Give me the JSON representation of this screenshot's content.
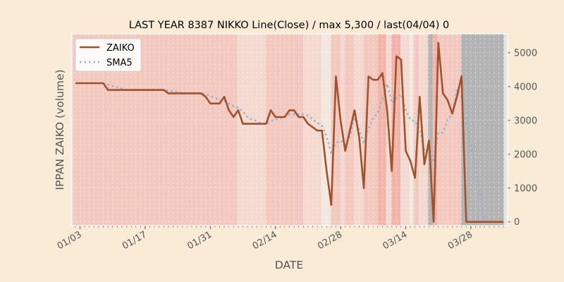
{
  "chart_data": {
    "type": "line",
    "title": "LAST YEAR 8387 NIKKO Line(Close) / max 5,300 / last(04/04) 0",
    "xlabel": "DATE",
    "ylabel": "IPPAN ZAIKO (volume)",
    "ylim": [
      -110,
      5560
    ],
    "xlim_days": [
      -0.9,
      92.9
    ],
    "start_date": "01/02",
    "y_ticks": [
      0,
      1000,
      2000,
      3000,
      4000,
      5000
    ],
    "y_tick_labels": [
      "0",
      "1000",
      "2000",
      "3000",
      "4000",
      "5000"
    ],
    "x_ticks": [
      {
        "day": 1,
        "label": "01/03"
      },
      {
        "day": 15,
        "label": "01/17"
      },
      {
        "day": 29,
        "label": "01/31"
      },
      {
        "day": 43,
        "label": "02/14"
      },
      {
        "day": 57,
        "label": "02/28"
      },
      {
        "day": 71,
        "label": "03/14"
      },
      {
        "day": 85,
        "label": "03/28"
      }
    ],
    "legend": {
      "placement": "top-left",
      "entries": [
        "ZAIKO",
        "SMA5"
      ]
    },
    "grid": true,
    "series": [
      {
        "name": "ZAIKO",
        "style": "solid",
        "color": "#a0522d",
        "values": [
          4100,
          4100,
          4100,
          4100,
          4100,
          4100,
          4100,
          3900,
          3900,
          3900,
          3900,
          3900,
          3900,
          3900,
          3900,
          3900,
          3900,
          3900,
          3900,
          3900,
          3800,
          3800,
          3800,
          3800,
          3800,
          3800,
          3800,
          3800,
          3700,
          3500,
          3500,
          3500,
          3700,
          3300,
          3100,
          3300,
          2900,
          2900,
          2900,
          2900,
          2900,
          2900,
          3300,
          3100,
          3100,
          3100,
          3300,
          3300,
          3100,
          3100,
          2900,
          2800,
          2700,
          2700,
          1500,
          500,
          4300,
          3000,
          2100,
          2700,
          3300,
          2500,
          1000,
          4300,
          4200,
          4200,
          4400,
          3300,
          1500,
          4900,
          4800,
          2100,
          1800,
          1300,
          3700,
          1700,
          2400,
          0,
          5300,
          3800,
          3600,
          3200,
          3700,
          4300,
          0,
          0,
          0,
          0,
          0,
          0,
          0,
          0,
          0
        ]
      },
      {
        "name": "SMA5",
        "style": "dotted",
        "color": "#8fb3cc",
        "values": [
          null,
          null,
          null,
          null,
          4100,
          4100,
          4100,
          4060,
          4020,
          3980,
          3940,
          3900,
          3900,
          3900,
          3900,
          3900,
          3900,
          3900,
          3900,
          3900,
          3880,
          3860,
          3840,
          3820,
          3800,
          3800,
          3800,
          3800,
          3780,
          3720,
          3660,
          3600,
          3580,
          3500,
          3420,
          3380,
          3260,
          3100,
          3020,
          2980,
          2900,
          2900,
          2980,
          3020,
          3060,
          3100,
          3180,
          3180,
          3180,
          3180,
          3140,
          3040,
          2920,
          2840,
          2520,
          2040,
          2340,
          2400,
          2280,
          2520,
          3080,
          2720,
          2320,
          2760,
          3060,
          3240,
          3620,
          4080,
          3520,
          3660,
          3780,
          3320,
          3020,
          2980,
          2740,
          2120,
          2180,
          1820,
          2620,
          2640,
          3020,
          3180,
          3920,
          3720,
          2960,
          2240,
          1600,
          860,
          0,
          0,
          0,
          0,
          0
        ]
      }
    ],
    "background_bands": [
      {
        "from": -0.5,
        "to": 34.8,
        "level": "mid"
      },
      {
        "from": 34.8,
        "to": 40.9,
        "level": "light"
      },
      {
        "from": 40.9,
        "to": 49,
        "level": "mid"
      },
      {
        "from": 49,
        "to": 52.9,
        "level": "light"
      },
      {
        "from": 52.9,
        "to": 54.9,
        "level": "pale"
      },
      {
        "from": 54.9,
        "to": 57,
        "level": "mid"
      },
      {
        "from": 57,
        "to": 57.9,
        "level": "light"
      },
      {
        "from": 57.9,
        "to": 59.9,
        "level": "mid"
      },
      {
        "from": 59.9,
        "to": 61.9,
        "level": "light"
      },
      {
        "from": 61.9,
        "to": 64.9,
        "level": "mid"
      },
      {
        "from": 64.9,
        "to": 66.8,
        "level": "strong"
      },
      {
        "from": 66.8,
        "to": 67.9,
        "level": "light"
      },
      {
        "from": 67.9,
        "to": 69.9,
        "level": "strong"
      },
      {
        "from": 69.9,
        "to": 71.8,
        "level": "light"
      },
      {
        "from": 71.8,
        "to": 72.7,
        "level": "pale"
      },
      {
        "from": 72.7,
        "to": 73.8,
        "level": "mid"
      },
      {
        "from": 73.8,
        "to": 75.8,
        "level": "light"
      },
      {
        "from": 75.8,
        "to": 76.8,
        "level": "gray"
      },
      {
        "from": 76.8,
        "to": 77.8,
        "level": "strong"
      },
      {
        "from": 77.8,
        "to": 82.9,
        "level": "mid"
      },
      {
        "from": 82.9,
        "to": 92.1,
        "level": "gray"
      }
    ],
    "band_colors": {
      "mid": "#f3c8bf",
      "light": "#f4d9d0",
      "pale": "#f3e8de",
      "strong": "#f2b4a9",
      "gray": "#b3b3b3"
    },
    "axes_background": "#e5e5e5",
    "figure_background": "#faebd7"
  }
}
